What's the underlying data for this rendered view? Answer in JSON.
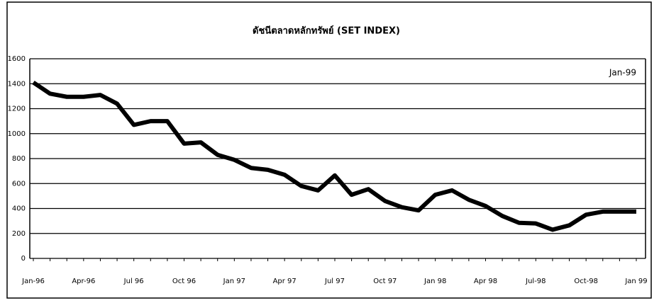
{
  "chart_data": {
    "type": "line",
    "title": "ดัชนีตลาดหลักทรัพย์ (SET INDEX)",
    "annotation": "Jan-99",
    "categories": [
      "Jan-96",
      null,
      null,
      "Apr-96",
      null,
      null,
      "Jul 96",
      null,
      null,
      "Oct 96",
      null,
      null,
      "Jan 97",
      null,
      null,
      "Apr 97",
      null,
      null,
      "Jul 97",
      null,
      null,
      "Oct 97",
      null,
      null,
      "Jan 98",
      null,
      null,
      "Apr 98",
      null,
      null,
      "Jul-98",
      null,
      null,
      "Oct-98",
      null,
      null,
      "Jan 99"
    ],
    "series": [
      {
        "name": "SET INDEX",
        "color": "#000000",
        "values": [
          1410,
          1320,
          1295,
          1295,
          1310,
          1240,
          1070,
          1100,
          1100,
          920,
          930,
          830,
          790,
          725,
          710,
          670,
          580,
          545,
          665,
          510,
          555,
          460,
          410,
          385,
          510,
          545,
          470,
          420,
          340,
          285,
          280,
          230,
          265,
          350,
          375,
          375,
          375
        ]
      }
    ],
    "ylim": [
      0,
      1600
    ],
    "yticks": [
      0,
      200,
      400,
      600,
      800,
      1000,
      1200,
      1400,
      1600
    ],
    "grid": true
  }
}
